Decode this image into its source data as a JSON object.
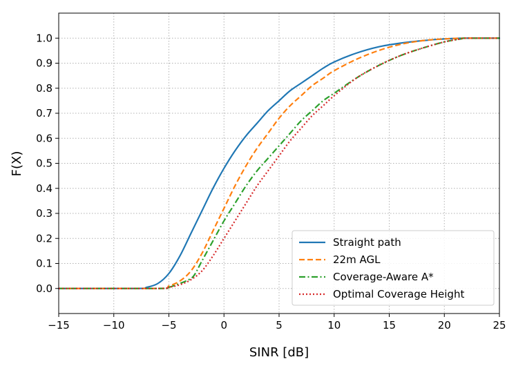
{
  "chart_data": {
    "type": "line",
    "title": "",
    "xlabel": "SINR [dB]",
    "ylabel": "F(X)",
    "xlim": [
      -15,
      25
    ],
    "ylim": [
      -0.1,
      1.1
    ],
    "xticks": [
      -15,
      -10,
      -5,
      0,
      5,
      10,
      15,
      20,
      25
    ],
    "xtick_labels": [
      "−15",
      "−10",
      "−5",
      "0",
      "5",
      "10",
      "15",
      "20",
      "25"
    ],
    "yticks": [
      0.0,
      0.1,
      0.2,
      0.3,
      0.4,
      0.5,
      0.6,
      0.7,
      0.8,
      0.9,
      1.0
    ],
    "ytick_labels": [
      "0.0",
      "0.1",
      "0.2",
      "0.3",
      "0.4",
      "0.5",
      "0.6",
      "0.7",
      "0.8",
      "0.9",
      "1.0"
    ],
    "grid": true,
    "legend_position": "lower-right",
    "series": [
      {
        "name": "Straight path",
        "color": "#1f77b4",
        "dash": "solid",
        "x": [
          -15,
          -8,
          -7,
          -6,
          -5,
          -4,
          -3,
          -2,
          -1,
          0,
          1,
          2,
          3,
          4,
          5,
          6,
          7,
          8,
          9,
          10,
          12,
          14,
          16,
          18,
          20,
          22,
          25
        ],
        "y": [
          0,
          0,
          0.005,
          0.02,
          0.06,
          0.13,
          0.22,
          0.31,
          0.4,
          0.48,
          0.55,
          0.61,
          0.66,
          0.71,
          0.75,
          0.79,
          0.82,
          0.85,
          0.88,
          0.905,
          0.94,
          0.965,
          0.98,
          0.99,
          0.997,
          1.0,
          1.0
        ]
      },
      {
        "name": "22m AGL",
        "color": "#ff7f0e",
        "dash": "dashed",
        "x": [
          -15,
          -6,
          -5,
          -4,
          -3,
          -2,
          -1,
          0,
          1,
          2,
          3,
          4,
          5,
          6,
          7,
          8,
          9,
          10,
          12,
          14,
          16,
          18,
          20,
          22,
          25
        ],
        "y": [
          0,
          0,
          0.01,
          0.03,
          0.07,
          0.14,
          0.23,
          0.32,
          0.41,
          0.49,
          0.56,
          0.62,
          0.68,
          0.73,
          0.77,
          0.81,
          0.84,
          0.87,
          0.915,
          0.95,
          0.975,
          0.99,
          0.997,
          1.0,
          1.0
        ]
      },
      {
        "name": "Coverage-Aware A*",
        "color": "#2ca02c",
        "dash": "dashdot",
        "x": [
          -15,
          -6,
          -5,
          -4,
          -3,
          -2.6,
          -2,
          -1,
          0,
          1,
          2,
          3,
          4,
          5,
          6,
          7,
          8,
          9,
          10,
          12,
          14,
          16,
          18,
          20,
          21.5,
          22,
          25
        ],
        "y": [
          0,
          0,
          0.005,
          0.02,
          0.04,
          0.06,
          0.11,
          0.19,
          0.27,
          0.34,
          0.41,
          0.47,
          0.52,
          0.57,
          0.62,
          0.67,
          0.71,
          0.75,
          0.78,
          0.84,
          0.89,
          0.93,
          0.96,
          0.985,
          0.997,
          1.0,
          1.0
        ]
      },
      {
        "name": "Optimal Coverage Height",
        "color": "#d62728",
        "dash": "dotted",
        "x": [
          -15,
          -6,
          -5,
          -4,
          -3,
          -2,
          -1,
          0,
          1,
          2,
          3,
          4,
          5,
          6,
          7,
          8,
          9,
          10,
          12,
          14,
          16,
          18,
          20,
          21.5,
          22,
          25
        ],
        "y": [
          0,
          0,
          0.005,
          0.015,
          0.035,
          0.07,
          0.13,
          0.2,
          0.27,
          0.34,
          0.41,
          0.47,
          0.53,
          0.59,
          0.64,
          0.69,
          0.73,
          0.77,
          0.84,
          0.89,
          0.93,
          0.96,
          0.985,
          0.997,
          1.0,
          1.0
        ]
      }
    ]
  }
}
